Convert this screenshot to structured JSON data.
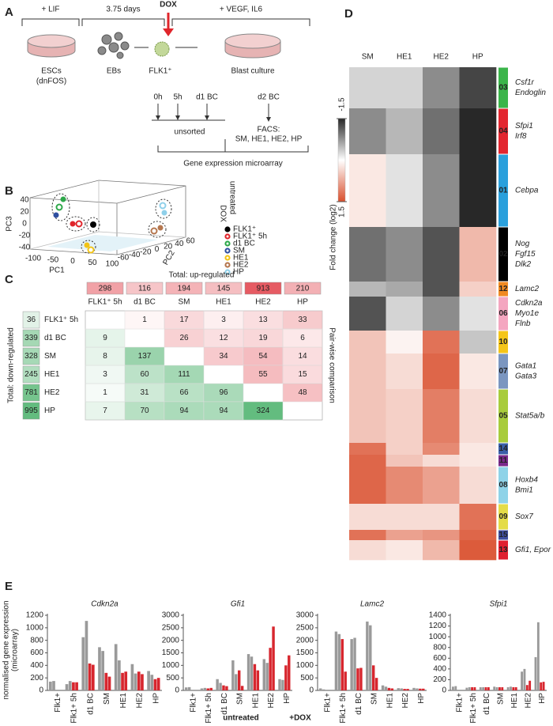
{
  "panel_a": {
    "label": "A",
    "lif": "+ LIF",
    "days": "3.75 days",
    "dox": "DOX",
    "vegf": "+ VEGF, IL6",
    "escs": "ESCs",
    "dnfos": "(dnFOS)",
    "ebs": "EBs",
    "flk1": "FLK1⁺",
    "blast": "Blast culture",
    "t0": "0h",
    "t5": "5h",
    "d1": "d1 BC",
    "d2": "d2 BC",
    "unsorted": "unsorted",
    "facs": "FACS:",
    "facs_pops": "SM, HE1, HE2, HP",
    "microarray": "Gene expression microarray"
  },
  "panel_b": {
    "label": "B",
    "x_label": "PC1",
    "y_label": "PC2",
    "z_label": "PC3",
    "x_ticks": [
      -100,
      -50,
      0,
      50,
      100
    ],
    "y_ticks": [
      -60,
      -40,
      -20,
      0,
      20,
      40,
      60
    ],
    "z_ticks": [
      -40,
      -20,
      0,
      20,
      40
    ],
    "legend_untreated": "untreated",
    "legend_dox": "DOX",
    "groups": [
      {
        "name": "FLK1⁺",
        "color": "#000000"
      },
      {
        "name": "FLK1⁺ 5h",
        "color": "#e0252b"
      },
      {
        "name": "d1 BC",
        "color": "#2ea84a"
      },
      {
        "name": "SM",
        "color": "#2f4fa0"
      },
      {
        "name": "HE1",
        "color": "#f2c418"
      },
      {
        "name": "HE2",
        "color": "#b5774f"
      },
      {
        "name": "HP",
        "color": "#8fd0ea"
      }
    ]
  },
  "panel_c": {
    "label": "C",
    "up_title": "Total: up-regulated",
    "down_title": "Total: down-regulated",
    "side_title": "Pair-wise comparison",
    "groups": [
      "FLK1⁺ 5h",
      "d1 BC",
      "SM",
      "HE1",
      "HE2",
      "HP"
    ],
    "up_totals": [
      298,
      116,
      194,
      145,
      913,
      210
    ],
    "down_totals": [
      36,
      339,
      328,
      245,
      781,
      995
    ],
    "matrix": [
      [
        null,
        1,
        17,
        3,
        13,
        33
      ],
      [
        9,
        null,
        26,
        12,
        19,
        6
      ],
      [
        8,
        137,
        null,
        34,
        54,
        14
      ],
      [
        3,
        60,
        111,
        null,
        55,
        15
      ],
      [
        1,
        31,
        66,
        96,
        null,
        48
      ],
      [
        7,
        70,
        94,
        94,
        324,
        null
      ]
    ]
  },
  "panel_d": {
    "label": "D",
    "columns": [
      "SM",
      "HE1",
      "HE2",
      "HP"
    ],
    "colorbar_label": "Fold change (log2)",
    "colorbar_min": -1.5,
    "colorbar_max": 1.5,
    "clusters": [
      {
        "id": "03",
        "color": "#3bb54a",
        "genes": [
          "Csf1r",
          "Endoglin"
        ],
        "values": [
          -0.3,
          -0.3,
          -0.8,
          -1.3
        ]
      },
      {
        "id": "04",
        "color": "#e3262f",
        "genes": [
          "Sfpi1",
          "Irf8"
        ],
        "values": [
          -0.8,
          -0.5,
          -1.0,
          -1.5
        ]
      },
      {
        "id": "01",
        "color": "#2aa0dc",
        "genes": [
          "Cebpa"
        ],
        "values": [
          0.2,
          -0.2,
          -0.8,
          -1.5
        ]
      },
      {
        "id": "02",
        "color": "#000000",
        "genes": [
          "Nog",
          "Fgf15",
          "Dlk2"
        ],
        "values": [
          -1.0,
          -0.8,
          -1.2,
          0.6
        ]
      },
      {
        "id": "12",
        "color": "#f08a22",
        "genes": [
          "Lamc2"
        ],
        "values": [
          -0.5,
          -0.6,
          -1.2,
          0.4
        ]
      },
      {
        "id": "06",
        "color": "#f4a6c0",
        "genes": [
          "Cdkn2a",
          "Myo1e",
          "Flnb"
        ],
        "values": [
          -1.2,
          -0.3,
          -0.8,
          -0.2
        ]
      },
      {
        "id": "10",
        "color": "#f5c518",
        "values": [
          0.5,
          0.1,
          1.2,
          -0.4
        ]
      },
      {
        "id": "07",
        "color": "#7b96c0",
        "genes": [
          "Gata1",
          "Gata3"
        ],
        "values": [
          0.5,
          0.3,
          1.3,
          0.2
        ]
      },
      {
        "id": "05",
        "color": "#a8cc3c",
        "genes": [
          "Stat5a/b"
        ],
        "values": [
          0.5,
          0.4,
          1.1,
          0.3
        ]
      },
      {
        "id": "14",
        "color": "#3a5fa8",
        "values": [
          1.2,
          0.4,
          1.0,
          0.2
        ]
      },
      {
        "id": "11",
        "color": "#7a2a8a",
        "values": [
          1.3,
          0.5,
          0.3,
          0.2
        ]
      },
      {
        "id": "08",
        "color": "#8fd3e8",
        "genes": [
          "Hoxb4",
          "Bmi1"
        ],
        "values": [
          1.3,
          1.0,
          0.8,
          0.3
        ]
      },
      {
        "id": "09",
        "color": "#e4dc48",
        "genes": [
          "Sox7"
        ],
        "values": [
          0.3,
          0.3,
          0.3,
          1.2
        ]
      },
      {
        "id": "15",
        "color": "#3e4fa0",
        "values": [
          1.2,
          0.8,
          0.9,
          1.3
        ]
      },
      {
        "id": "13",
        "color": "#e02030",
        "genes": [
          "Gfi1, Epor"
        ],
        "values": [
          0.3,
          0.2,
          0.6,
          1.4
        ]
      }
    ]
  },
  "panel_e": {
    "label": "E",
    "y_label": "normalised gene expression",
    "y_label2": "(microarray)"
  },
  "chart_data": [
    {
      "type": "bar",
      "title": "Cdkn2a",
      "categories": [
        "Flk1+",
        "Flk1+ 5h",
        "d1 BC",
        "SM",
        "HE1",
        "HE2",
        "HP"
      ],
      "ylim": [
        0,
        1200
      ],
      "yticks": [
        0,
        200,
        400,
        600,
        800,
        1000,
        1200
      ],
      "series": [
        {
          "name": "untreated",
          "color": "#9a9a9a",
          "values": [
            [
              140,
              150
            ],
            [
              100,
              150
            ],
            [
              850,
              1110
            ],
            [
              690,
              630
            ],
            [
              740,
              480
            ],
            [
              420,
              270
            ],
            [
              310,
              250
            ]
          ]
        },
        {
          "name": "+DOX",
          "color": "#d7262e",
          "values": [
            null,
            [
              130,
              130
            ],
            [
              430,
              410
            ],
            [
              280,
              220
            ],
            [
              280,
              300
            ],
            [
              300,
              260
            ],
            [
              180,
              200
            ]
          ]
        }
      ]
    },
    {
      "type": "bar",
      "title": "Gfi1",
      "categories": [
        "Flk1+",
        "Flk1+ 5h",
        "d1 BC",
        "SM",
        "HE1",
        "HE2",
        "HP"
      ],
      "ylim": [
        0,
        3000
      ],
      "yticks": [
        0,
        500,
        1000,
        1500,
        2000,
        2500,
        3000
      ],
      "series": [
        {
          "name": "untreated",
          "color": "#9a9a9a",
          "values": [
            [
              120,
              130
            ],
            [
              80,
              100
            ],
            [
              450,
              300
            ],
            [
              1200,
              650
            ],
            [
              1450,
              1350
            ],
            [
              1250,
              1100
            ],
            [
              450,
              420
            ]
          ]
        },
        {
          "name": "+DOX",
          "color": "#d7262e",
          "values": [
            null,
            [
              80,
              100
            ],
            [
              200,
              170
            ],
            [
              800,
              180
            ],
            [
              1050,
              800
            ],
            [
              1700,
              2550
            ],
            [
              1000,
              1400
            ]
          ]
        }
      ]
    },
    {
      "type": "bar",
      "title": "Lamc2",
      "categories": [
        "Flk1+",
        "Flk1+ 5h",
        "d1 BC",
        "SM",
        "HE1",
        "HE2",
        "HP"
      ],
      "ylim": [
        0,
        3000
      ],
      "yticks": [
        0,
        500,
        1000,
        1500,
        2000,
        2500,
        3000
      ],
      "series": [
        {
          "name": "untreated",
          "color": "#9a9a9a",
          "values": [
            [
              80,
              40
            ],
            [
              2350,
              2250
            ],
            [
              2050,
              2100
            ],
            [
              2750,
              2600
            ],
            [
              200,
              150
            ],
            [
              90,
              80
            ],
            [
              100,
              80
            ]
          ]
        },
        {
          "name": "+DOX",
          "color": "#d7262e",
          "values": [
            null,
            [
              2050,
              750
            ],
            [
              880,
              900
            ],
            [
              1000,
              500
            ],
            [
              100,
              80
            ],
            [
              60,
              60
            ],
            [
              70,
              70
            ]
          ]
        }
      ]
    },
    {
      "type": "bar",
      "title": "Sfpi1",
      "categories": [
        "Flk1+",
        "Flk1+ 5h",
        "d1 BC",
        "SM",
        "HE1",
        "HE2",
        "HP"
      ],
      "ylim": [
        0,
        1400
      ],
      "yticks": [
        0,
        200,
        400,
        600,
        800,
        1000,
        1200,
        1400
      ],
      "series": [
        {
          "name": "untreated",
          "color": "#9a9a9a",
          "values": [
            [
              70,
              80
            ],
            [
              50,
              60
            ],
            [
              60,
              60
            ],
            [
              70,
              60
            ],
            [
              60,
              70
            ],
            [
              350,
              400
            ],
            [
              620,
              1270
            ]
          ]
        },
        {
          "name": "+DOX",
          "color": "#d7262e",
          "values": [
            null,
            [
              60,
              60
            ],
            [
              60,
              60
            ],
            [
              60,
              60
            ],
            [
              60,
              60
            ],
            [
              100,
              180
            ],
            [
              150,
              160
            ]
          ]
        }
      ]
    }
  ]
}
